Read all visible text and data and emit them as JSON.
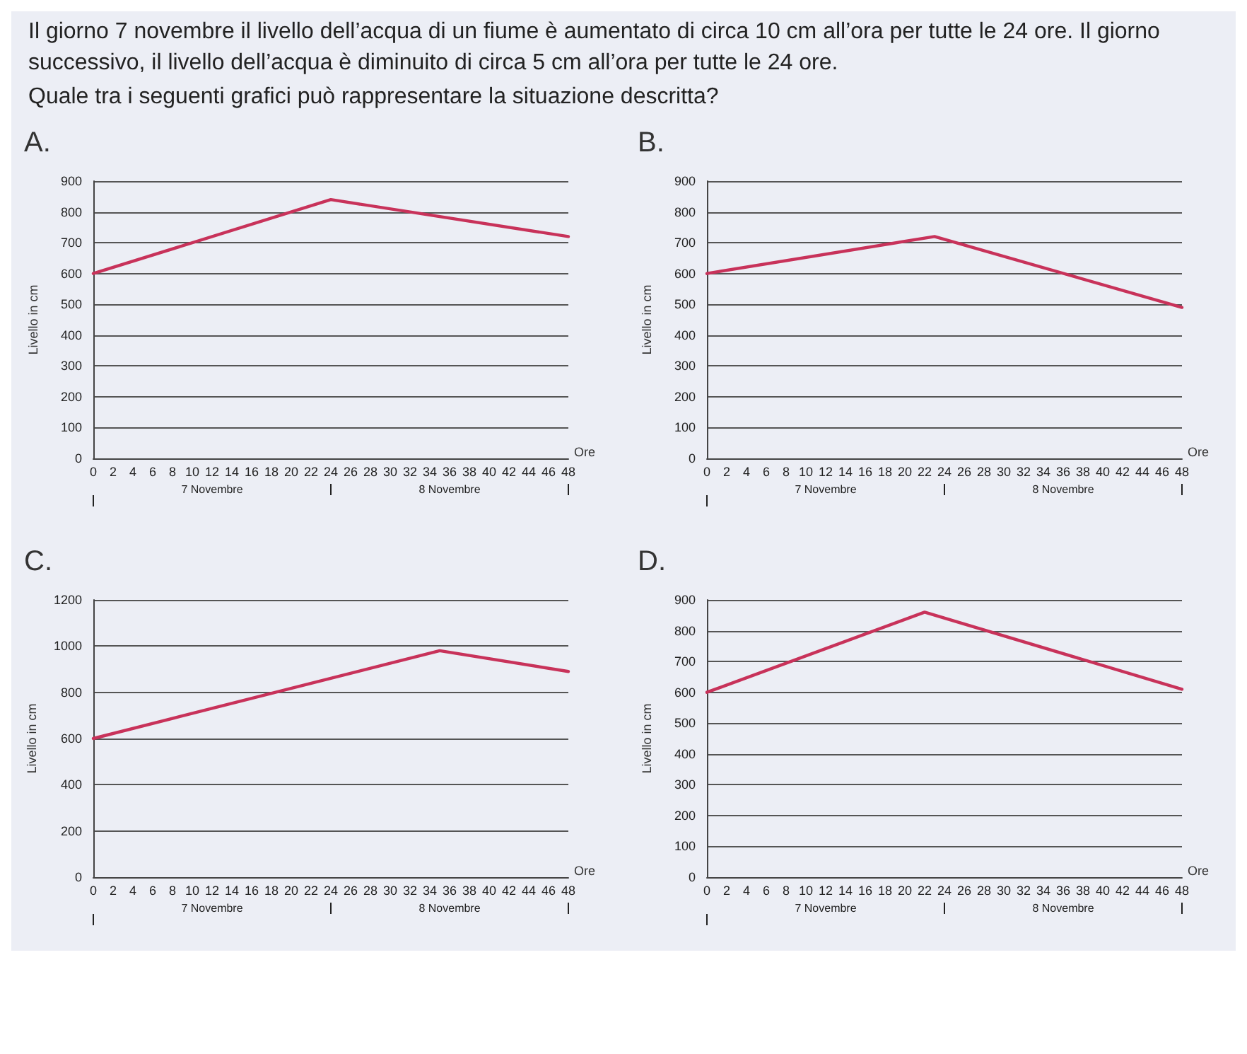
{
  "chart_data": [
    {
      "type": "other",
      "title": "Il giorno 7 novembre il livello dell’acqua di un fiume è aumentato di circa 10 cm all’ora per tutte le 24 ore. Il giorno successivo, il livello dell’acqua è diminuito di circa 5 cm all’ora per tutte le 24 ore.",
      "subtitle": "Quale tra i seguenti grafici può rappresentare la situazione descritta?"
    },
    {
      "type": "line",
      "title": "A.",
      "xlabel": "Ore",
      "ylabel": "Livello in cm",
      "x": [
        0,
        24,
        48
      ],
      "series": [
        {
          "color": "#c8325a",
          "values": [
            600,
            840,
            720
          ]
        }
      ],
      "xlim": [
        0,
        48
      ],
      "xticks": [
        0,
        2,
        4,
        6,
        8,
        10,
        12,
        14,
        16,
        18,
        20,
        22,
        24,
        26,
        28,
        30,
        32,
        34,
        36,
        38,
        40,
        42,
        44,
        46,
        48
      ],
      "ylim": [
        0,
        900
      ],
      "yticks": [
        0,
        100,
        200,
        300,
        400,
        500,
        600,
        700,
        800,
        900
      ],
      "grid": "y",
      "marker": "none",
      "line_style": "solid",
      "annotations": [
        "7 Novembre",
        "8 Novembre"
      ]
    },
    {
      "type": "line",
      "title": "B.",
      "xlabel": "Ore",
      "ylabel": "Livello in cm",
      "x": [
        0,
        23,
        48
      ],
      "series": [
        {
          "color": "#c8325a",
          "values": [
            600,
            720,
            490
          ]
        }
      ],
      "xlim": [
        0,
        48
      ],
      "xticks": [
        0,
        2,
        4,
        6,
        8,
        10,
        12,
        14,
        16,
        18,
        20,
        22,
        24,
        26,
        28,
        30,
        32,
        34,
        36,
        38,
        40,
        42,
        44,
        46,
        48
      ],
      "ylim": [
        0,
        900
      ],
      "yticks": [
        0,
        100,
        200,
        300,
        400,
        500,
        600,
        700,
        800,
        900
      ],
      "grid": "y",
      "marker": "none",
      "line_style": "solid",
      "annotations": [
        "7 Novembre",
        "8 Novembre"
      ]
    },
    {
      "type": "line",
      "title": "C.",
      "xlabel": "Ore",
      "ylabel": "Livello in cm",
      "x": [
        0,
        35,
        48
      ],
      "series": [
        {
          "color": "#c8325a",
          "values": [
            600,
            980,
            890
          ]
        }
      ],
      "xlim": [
        0,
        48
      ],
      "xticks": [
        0,
        2,
        4,
        6,
        8,
        10,
        12,
        14,
        16,
        18,
        20,
        22,
        24,
        26,
        28,
        30,
        32,
        34,
        36,
        38,
        40,
        42,
        44,
        46,
        48
      ],
      "ylim": [
        0,
        1200
      ],
      "yticks": [
        0,
        200,
        400,
        600,
        800,
        1000,
        1200
      ],
      "grid": "y",
      "marker": "none",
      "line_style": "solid",
      "annotations": [
        "7 Novembre",
        "8 Novembre"
      ]
    },
    {
      "type": "line",
      "title": "D.",
      "xlabel": "Ore",
      "ylabel": "Livello in cm",
      "x": [
        0,
        22,
        48
      ],
      "series": [
        {
          "color": "#c8325a",
          "values": [
            600,
            860,
            610
          ]
        }
      ],
      "xlim": [
        0,
        48
      ],
      "xticks": [
        0,
        2,
        4,
        6,
        8,
        10,
        12,
        14,
        16,
        18,
        20,
        22,
        24,
        26,
        28,
        30,
        32,
        34,
        36,
        38,
        40,
        42,
        44,
        46,
        48
      ],
      "ylim": [
        0,
        900
      ],
      "yticks": [
        0,
        100,
        200,
        300,
        400,
        500,
        600,
        700,
        800,
        900
      ],
      "grid": "y",
      "marker": "none",
      "line_style": "solid",
      "annotations": [
        "7 Novembre",
        "8 Novembre"
      ]
    }
  ]
}
